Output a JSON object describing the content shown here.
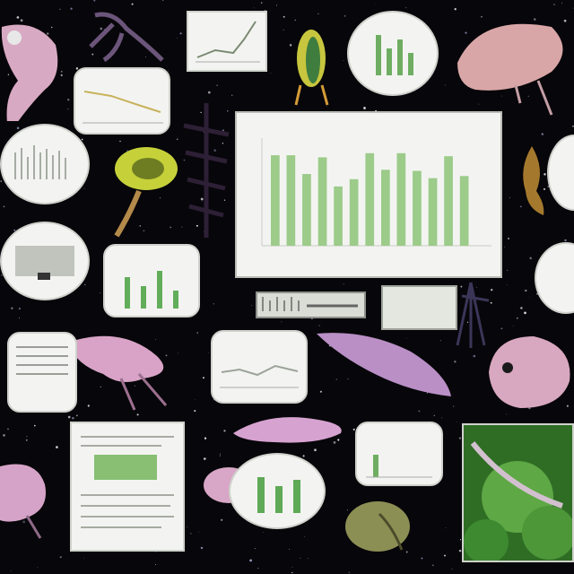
{
  "scene": {
    "background": "#07060a",
    "accent_green": "#9ccb8a",
    "creature_pink": "#d9a3c4"
  },
  "main_chart": {
    "title": "",
    "bar_color": "#9ccb8a"
  },
  "caption_panel": {
    "text": ""
  },
  "chart_data": {
    "type": "bar",
    "title": "",
    "xlabel": "",
    "ylabel": "",
    "ylim": [
      0,
      100
    ],
    "categories": [
      "",
      "",
      "",
      "",
      "",
      "",
      "",
      "",
      "",
      "",
      "",
      "",
      "",
      ""
    ],
    "values": [
      87,
      87,
      69,
      85,
      57,
      64,
      89,
      73,
      89,
      72,
      65,
      86,
      67,
      0
    ]
  }
}
